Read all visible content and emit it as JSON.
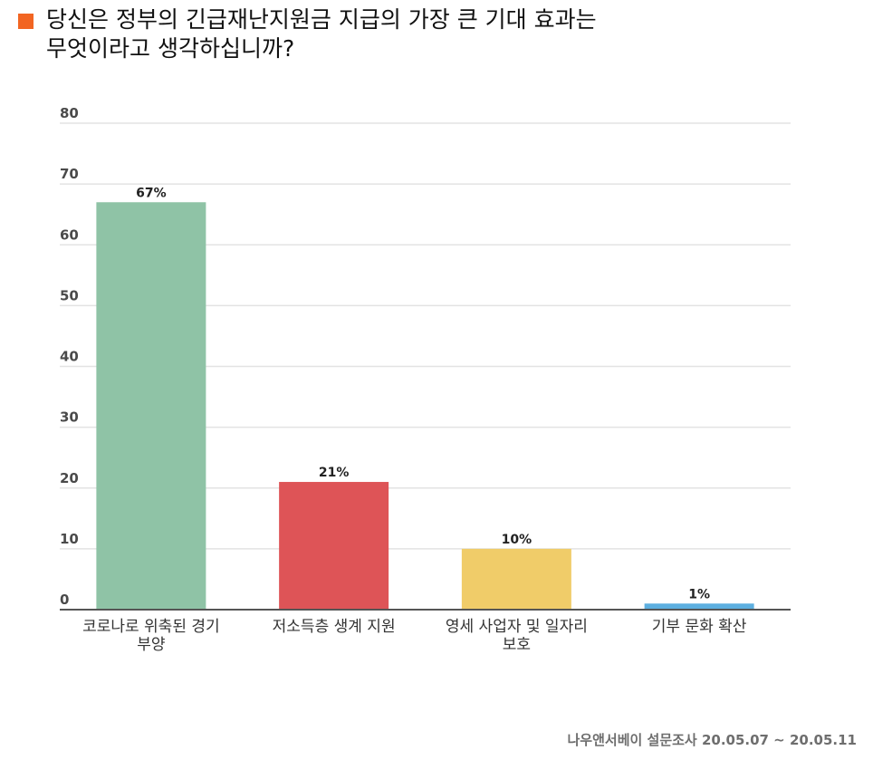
{
  "title": {
    "line1": "당신은 정부의 긴급재난지원금 지급의 가장 큰 기대 효과는",
    "line2": "무엇이라고 생각하십니까?",
    "marker_color": "#f26522"
  },
  "source": "나우앤서베이 설문조사 20.05.07 ~ 20.05.11",
  "chart_data": {
    "type": "bar",
    "title": "",
    "xlabel": "",
    "ylabel": "",
    "ylim": [
      0,
      80
    ],
    "yticks": [
      0,
      10,
      20,
      30,
      40,
      50,
      60,
      70,
      80
    ],
    "grid": true,
    "categories": [
      [
        "코로나로 위축된 경기",
        "부양"
      ],
      [
        "저소득층 생계 지원"
      ],
      [
        "영세 사업자 및 일자리",
        "보호"
      ],
      [
        "기부 문화 확산"
      ]
    ],
    "values": [
      67,
      21,
      10,
      1
    ],
    "value_labels": [
      "67%",
      "21%",
      "10%",
      "1%"
    ],
    "colors": [
      "#8fc3a6",
      "#de5457",
      "#f0cc69",
      "#5dafe0"
    ],
    "gridline_color": "#e3e3e3",
    "axis_color": "#555555"
  }
}
